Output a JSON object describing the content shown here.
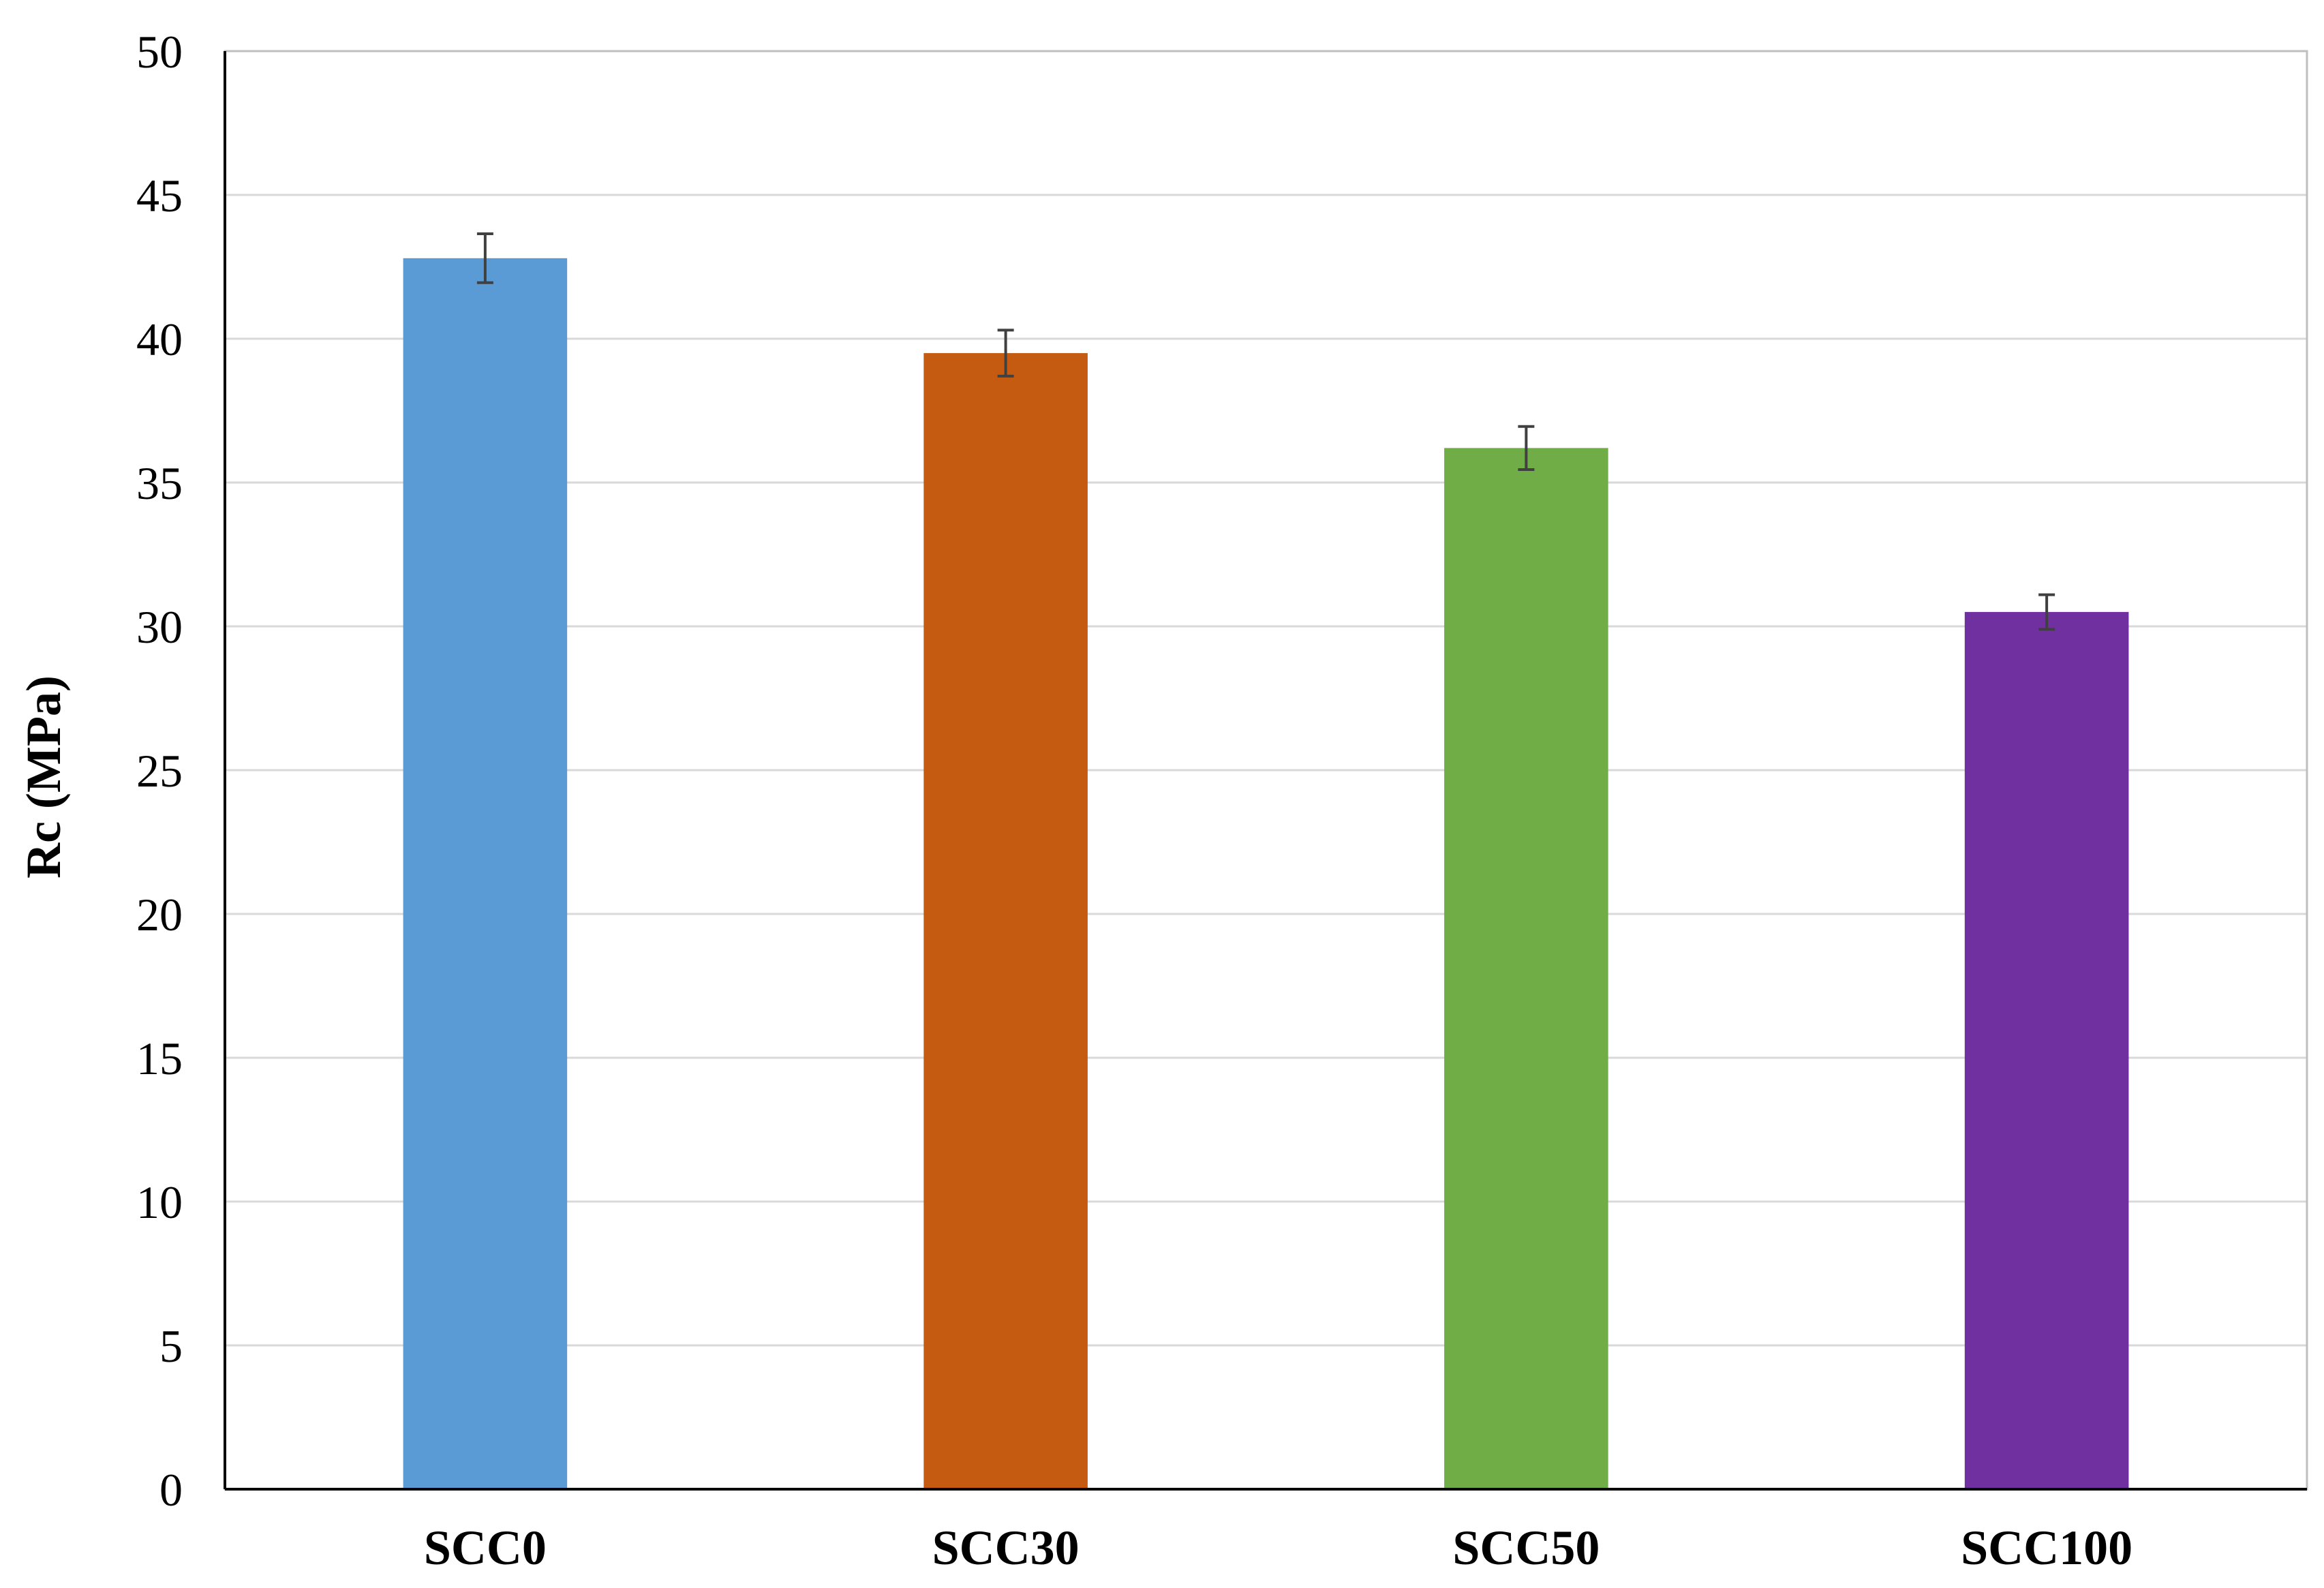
{
  "chart_data": {
    "type": "bar",
    "categories": [
      "SCC0",
      "SCC30",
      "SCC50",
      "SCC100"
    ],
    "values": [
      42.8,
      39.5,
      36.2,
      30.5
    ],
    "errors": [
      0.85,
      0.8,
      0.75,
      0.6
    ],
    "colors": [
      "#5b9bd5",
      "#c55a11",
      "#70ad47",
      "#7030a0"
    ],
    "title": "",
    "xlabel": "",
    "ylabel": "Rc (MPa)",
    "ylim": [
      0,
      50
    ],
    "yticks": [
      0,
      5,
      10,
      15,
      20,
      25,
      30,
      35,
      40,
      45,
      50
    ],
    "grid": true,
    "legend": "none"
  }
}
